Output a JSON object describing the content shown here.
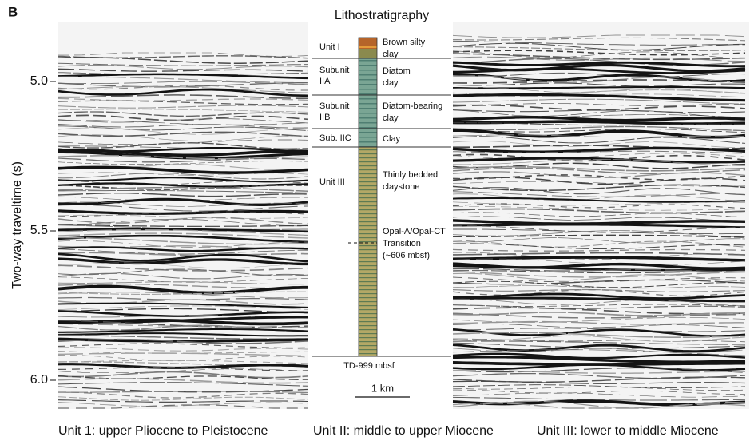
{
  "panel_label": "B",
  "title": "Lithostratigraphy",
  "y_axis": {
    "label": "Two-way traveltime (s)",
    "ticks": [
      "5.0",
      "5.5",
      "6.0"
    ]
  },
  "units": [
    {
      "unit": [
        "Unit I"
      ],
      "lithology": [
        "Brown silty",
        "clay"
      ]
    },
    {
      "unit": [
        "Subunit",
        "IIA"
      ],
      "lithology": [
        "Diatom",
        "clay"
      ]
    },
    {
      "unit": [
        "Subunit",
        "IIB"
      ],
      "lithology": [
        "Diatom-bearing",
        "clay"
      ]
    },
    {
      "unit": [
        "Sub. IIC"
      ],
      "lithology": [
        "Clay"
      ]
    },
    {
      "unit": [
        "Unit III"
      ],
      "lithology": [
        "Thinly bedded",
        "claystone"
      ]
    }
  ],
  "transition": [
    "Opal-A/Opal-CT",
    "Transition",
    "(~606 mbsf)"
  ],
  "total_depth": "TD-999 mbsf",
  "scale_bar": "1 km",
  "captions": [
    "Unit 1: upper Pliocene to Pleistocene",
    "Unit II: middle to upper Miocene",
    "Unit III: lower to middle Miocene"
  ]
}
